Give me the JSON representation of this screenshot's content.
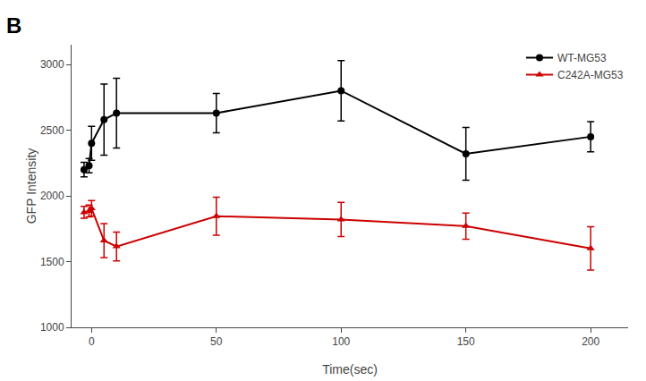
{
  "chart_data": {
    "type": "line",
    "x": [
      -3,
      -1,
      0,
      5,
      10,
      50,
      100,
      150,
      200
    ],
    "series": [
      {
        "name": "WT-MG53",
        "color": "#000000",
        "marker": "circle",
        "values": [
          2200,
          2230,
          2400,
          2580,
          2630,
          2630,
          2800,
          2320,
          2450
        ],
        "yerr": [
          55,
          55,
          130,
          270,
          265,
          150,
          230,
          200,
          115
        ]
      },
      {
        "name": "C242A-MG53",
        "color": "#cc0000",
        "marker": "triangle-up",
        "values": [
          1875,
          1885,
          1905,
          1660,
          1615,
          1845,
          1820,
          1770,
          1600
        ],
        "yerr": [
          45,
          45,
          60,
          130,
          110,
          145,
          130,
          100,
          165
        ]
      }
    ],
    "xlabel": "Time(sec)",
    "ylabel": "GFP Intensity",
    "annotations": [
      "B"
    ],
    "xlim": [
      -8,
      215
    ],
    "xticks": [
      0,
      50,
      100,
      150,
      200
    ],
    "ylim": [
      1000,
      3150
    ],
    "yticks": [
      1000,
      1500,
      2000,
      2500,
      3000
    ],
    "grid": false,
    "legend": "upper right"
  }
}
